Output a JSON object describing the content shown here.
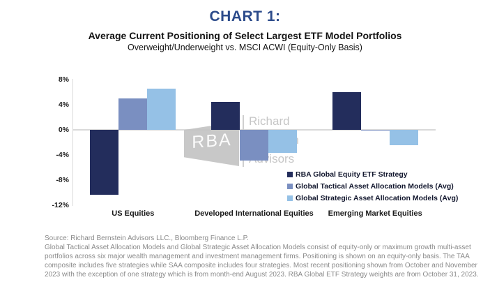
{
  "header": {
    "title": "CHART 1:",
    "subtitle": "Average Current Positioning of Select Largest ETF Model Portfolios",
    "subtitle2": "Overweight/Underweight vs. MSCI ACWI (Equity-Only Basis)"
  },
  "colors": {
    "title_blue": "#2b4a8a",
    "axis_gray": "#d9d9d9",
    "series_navy": "#232d5c",
    "series_medium_blue": "#7a8fc1",
    "series_light_blue": "#95c1e6",
    "footnote_gray": "#8a8a8a",
    "watermark_gray": "#c3c3c3"
  },
  "chart_data": {
    "type": "bar",
    "title": "Average Current Positioning of Select Largest ETF Model Portfolios",
    "subtitle": "Overweight/Underweight vs. MSCI ACWI (Equity-Only Basis)",
    "categories": [
      "US Equities",
      "Developed International Equities",
      "Emerging Market Equities"
    ],
    "series": [
      {
        "name": "RBA Global Equity ETF Strategy",
        "color": "#232d5c",
        "values": [
          -10.4,
          4.5,
          6.0
        ]
      },
      {
        "name": "Global Tactical Asset Allocation Models (Avg)",
        "color": "#7a8fc1",
        "values": [
          5.0,
          -4.9,
          -0.1
        ]
      },
      {
        "name": "Global Strategic Asset Allocation Models (Avg)",
        "color": "#95c1e6",
        "values": [
          6.6,
          -3.7,
          -2.5
        ]
      }
    ],
    "unit": "%",
    "ylim": [
      -12,
      8
    ],
    "yticks": [
      8,
      4,
      0,
      -4,
      -8,
      -12
    ],
    "ytick_labels": [
      "8%",
      "4%",
      "0%",
      "-4%",
      "-8%",
      "-12%"
    ],
    "grid": false,
    "legend_position": "inside-right"
  },
  "watermark": {
    "logo_text": "RBA",
    "name_lines": [
      "Richard",
      "Bernstein",
      "Advisors"
    ]
  },
  "footer": {
    "source": "Source:  Richard Bernstein Advisors LLC., Bloomberg Finance L.P.",
    "note": "Global Tactical Asset Allocation Models and Global Strategic Asset Allocation Models consist of equity-only or maximum growth multi-asset portfolios across six major wealth management and investment management firms. Positioning is shown on an equity-only basis. The TAA composite includes five strategies while SAA composite includes four strategies. Most recent positioning shown from October and November 2023 with the exception of one strategy which is from month-end August 2023. RBA Global ETF Strategy weights are from October 31, 2023."
  }
}
